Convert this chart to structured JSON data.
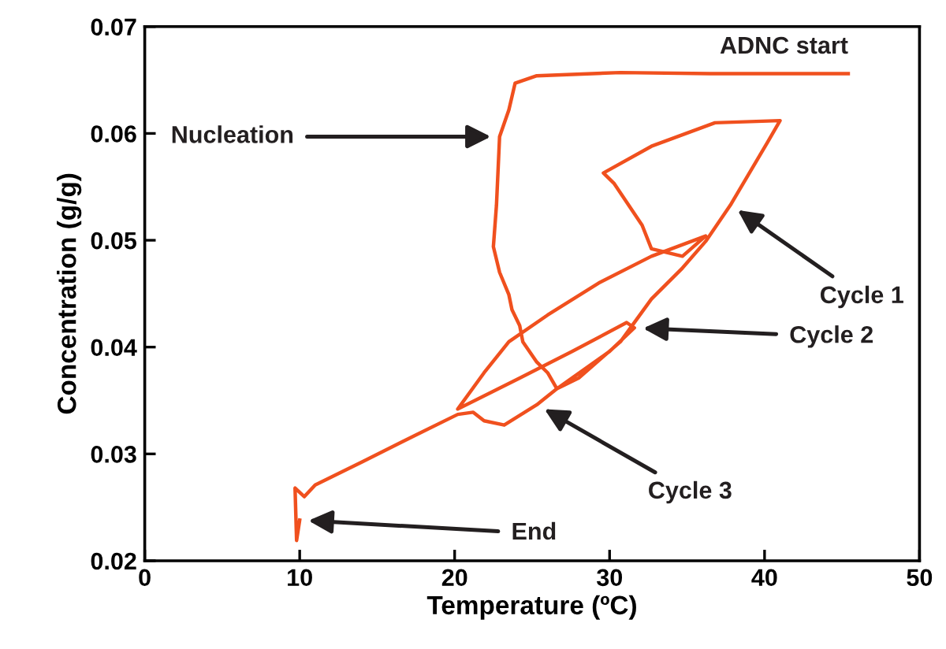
{
  "chart_data": {
    "type": "line",
    "xlabel": "Temperature (ºC)",
    "ylabel": "Concentration (g/g)",
    "xlim": [
      0,
      50
    ],
    "xticks": [
      0,
      10,
      20,
      30,
      40,
      50
    ],
    "ylim": [
      0.02,
      0.07
    ],
    "yticks": [
      0.02,
      0.03,
      0.04,
      0.05,
      0.06,
      0.07
    ],
    "grid": false,
    "legend": false,
    "marker": "none",
    "line_style": "solid",
    "series": [
      {
        "color": "#f0501e",
        "x": [
          45.4,
          36.5,
          30.7,
          25.3,
          23.9,
          23.5,
          22.9,
          22.7,
          22.5,
          22.9,
          23.5,
          23.7,
          24.2,
          24.4,
          25.3,
          26.0,
          26.6,
          28.0,
          30.7,
          32.7,
          34.7,
          36.2,
          37.8,
          40.2,
          41.0,
          36.8,
          32.7,
          29.6,
          30.3,
          32.1,
          32.7,
          34.7,
          36.2,
          32.7,
          29.3,
          26.0,
          23.5,
          21.9,
          20.2,
          24.2,
          27.6,
          31.1,
          31.6,
          30.0,
          26.6,
          25.3,
          23.2,
          21.9,
          21.2,
          20.2,
          17.4,
          14.1,
          11.0,
          10.3,
          9.7,
          9.8,
          10.0
        ],
        "values": [
          0.0656,
          0.0656,
          0.0657,
          0.0654,
          0.0647,
          0.0622,
          0.0597,
          0.0533,
          0.0494,
          0.047,
          0.0449,
          0.0435,
          0.042,
          0.0405,
          0.0386,
          0.0376,
          0.0361,
          0.0371,
          0.0405,
          0.0445,
          0.0474,
          0.0499,
          0.0533,
          0.0592,
          0.0612,
          0.061,
          0.0588,
          0.0563,
          0.0553,
          0.0514,
          0.0492,
          0.0485,
          0.0504,
          0.0485,
          0.046,
          0.043,
          0.0405,
          0.0376,
          0.0342,
          0.0371,
          0.0396,
          0.0423,
          0.0418,
          0.0396,
          0.0361,
          0.0346,
          0.0327,
          0.0331,
          0.0339,
          0.0337,
          0.0317,
          0.0293,
          0.0271,
          0.026,
          0.0268,
          0.0219,
          0.0238
        ]
      }
    ],
    "annotations": [
      {
        "text": "ADNC start",
        "x": 45.4,
        "y": 0.0656
      },
      {
        "text": "Nucleation",
        "x": 22.9,
        "y": 0.0597
      },
      {
        "text": "Cycle 1",
        "x": 37.8,
        "y": 0.0533
      },
      {
        "text": "Cycle 2",
        "x": 31.6,
        "y": 0.0418
      },
      {
        "text": "Cycle 3",
        "x": 25.3,
        "y": 0.0346
      },
      {
        "text": "End",
        "x": 10.0,
        "y": 0.0238
      }
    ]
  }
}
